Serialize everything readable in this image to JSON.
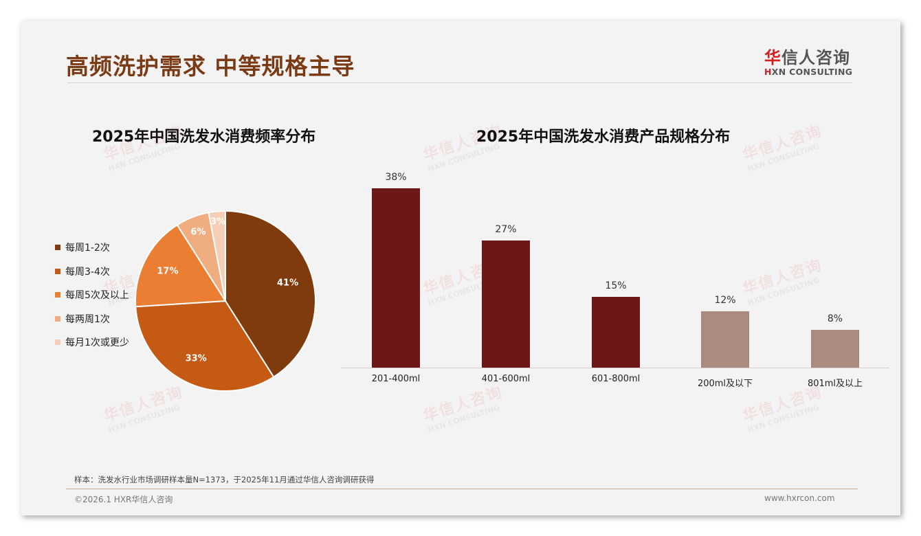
{
  "slide": {
    "title": "高频洗护需求 中等规格主导",
    "logo": {
      "cn_accent": "华",
      "cn_rest": "信人咨询",
      "en_accent": "H",
      "en_rest": "XN CONSULTING"
    },
    "watermark": {
      "cn": "华信人咨询",
      "en": "HXN CONSULTING"
    },
    "note": "样本：洗发水行业市场调研样本量N=1373，于2025年11月通过华信人咨询调研获得",
    "copyright": "©2026.1 HXR华信人咨询",
    "website": "www.hxrcon.com"
  },
  "colors": {
    "title": "#7a3a14",
    "bar_primary": "#6e1718",
    "bar_secondary": "#a98b80",
    "pie": [
      "#7f3b0e",
      "#c55a14",
      "#ea7f34",
      "#f0ad80",
      "#f5cfb5"
    ]
  },
  "chart_data": [
    {
      "type": "pie",
      "title": "2025年中国洗发水消费频率分布",
      "categories": [
        "每周1-2次",
        "每周3-4次",
        "每周5次及以上",
        "每两周1次",
        "每月1次或更少"
      ],
      "values": [
        41,
        33,
        17,
        6,
        3
      ],
      "labels": [
        "41%",
        "33%",
        "17%",
        "6%",
        "3%"
      ],
      "legend_position": "left"
    },
    {
      "type": "bar",
      "title": "2025年中国洗发水消费产品规格分布",
      "categories": [
        "201-400ml",
        "401-600ml",
        "601-800ml",
        "200ml及以下",
        "801ml及以上"
      ],
      "values": [
        38,
        27,
        15,
        12,
        8
      ],
      "labels": [
        "38%",
        "27%",
        "15%",
        "12%",
        "8%"
      ],
      "xlabel": "",
      "ylabel": "",
      "ylim": [
        0,
        40
      ],
      "grid": false,
      "highlight": [
        true,
        true,
        true,
        false,
        false
      ]
    }
  ]
}
